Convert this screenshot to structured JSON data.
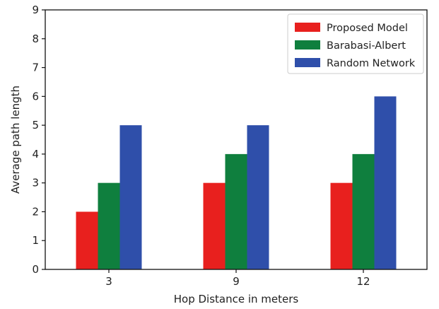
{
  "chart_data": {
    "type": "bar",
    "categories": [
      "3",
      "9",
      "12"
    ],
    "series": [
      {
        "name": "Proposed Model",
        "values": [
          2,
          3,
          3
        ],
        "color": "#e8201e"
      },
      {
        "name": "Barabasi-Albert",
        "values": [
          3,
          4,
          4
        ],
        "color": "#0f7f3e"
      },
      {
        "name": "Random Network",
        "values": [
          5,
          5,
          6
        ],
        "color": "#2f4faa"
      }
    ],
    "xlabel": "Hop Distance in meters",
    "ylabel": "Average path length",
    "ylim": [
      0,
      9
    ],
    "yticks": [
      "0",
      "1",
      "2",
      "3",
      "4",
      "5",
      "6",
      "7",
      "8",
      "9"
    ],
    "grid": false,
    "legend_position": "top-right"
  }
}
